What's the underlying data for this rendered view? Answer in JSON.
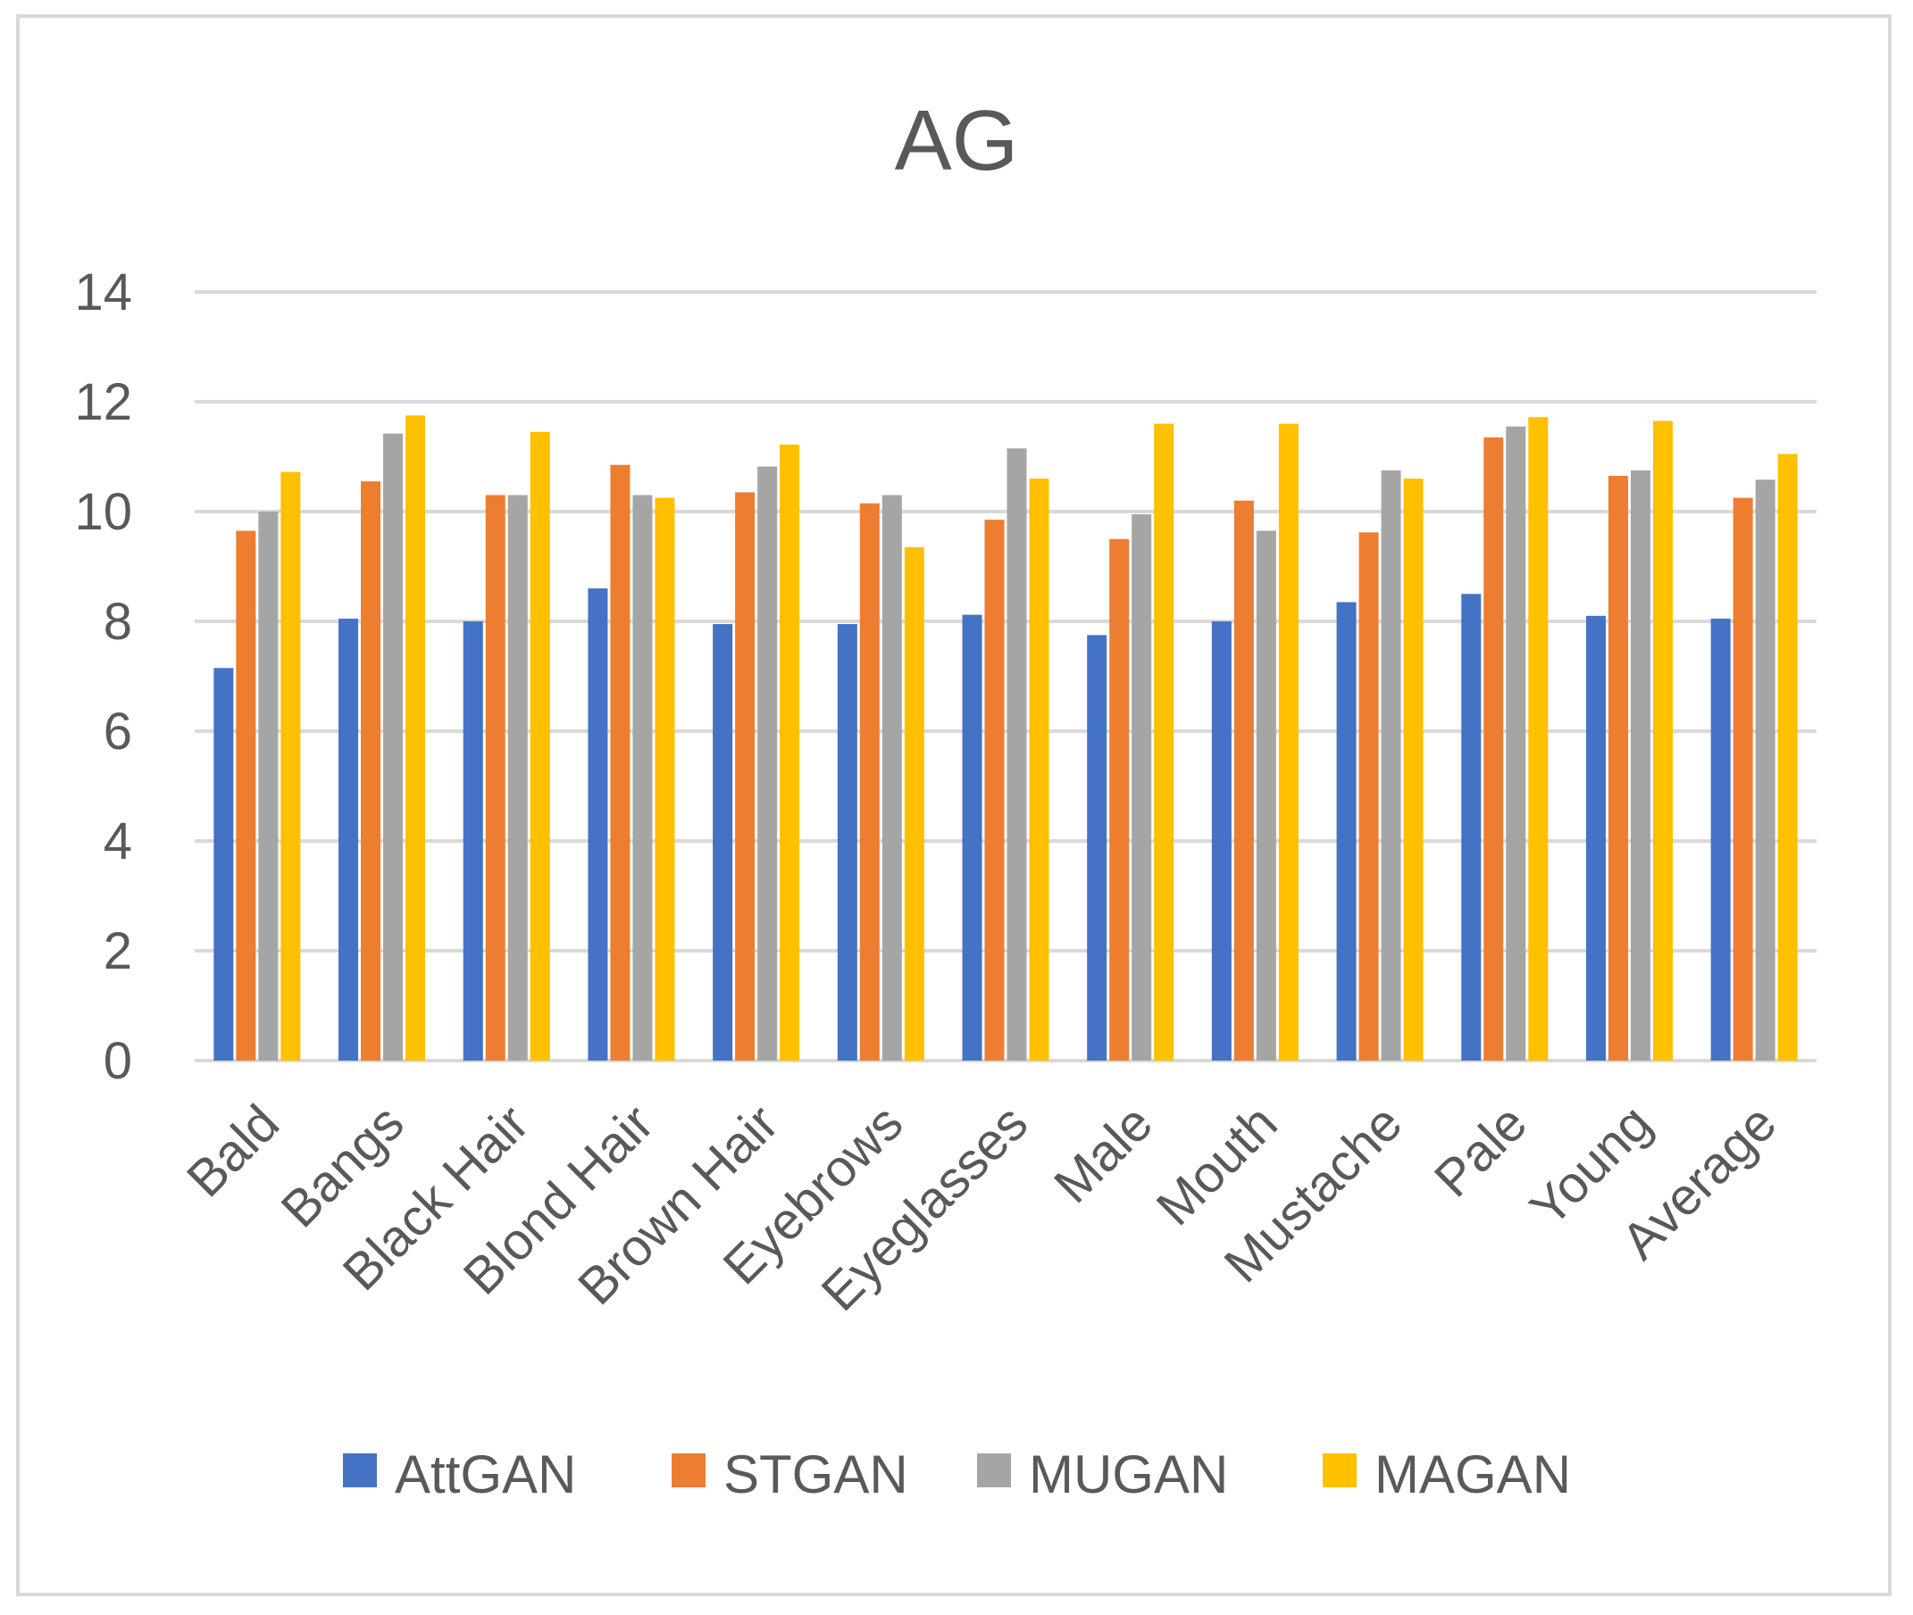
{
  "chart_data": {
    "type": "bar",
    "title": "AG",
    "xlabel": "",
    "ylabel": "",
    "ylim": [
      0,
      14
    ],
    "yticks": [
      "0",
      "2",
      "4",
      "6",
      "8",
      "10",
      "12",
      "14"
    ],
    "grid": true,
    "legend_position": "bottom",
    "categories": [
      "Bald",
      "Bangs",
      "Black Hair",
      "Blond Hair",
      "Brown Hair",
      "Eyebrows",
      "Eyeglasses",
      "Male",
      "Mouth",
      "Mustache",
      "Pale",
      "Young",
      "Average"
    ],
    "series": [
      {
        "name": "AttGAN",
        "color": "#4472c4",
        "values": [
          7.15,
          8.05,
          8.0,
          8.6,
          7.95,
          7.95,
          8.12,
          7.75,
          8.0,
          8.35,
          8.5,
          8.1,
          8.05
        ]
      },
      {
        "name": "STGAN",
        "color": "#ed7d31",
        "values": [
          9.65,
          10.55,
          10.3,
          10.85,
          10.35,
          10.15,
          9.85,
          9.5,
          10.2,
          9.62,
          11.35,
          10.65,
          10.25
        ]
      },
      {
        "name": "MUGAN",
        "color": "#a5a5a5",
        "values": [
          10.0,
          11.42,
          10.3,
          10.3,
          10.82,
          10.3,
          11.15,
          9.95,
          9.65,
          10.75,
          11.55,
          10.75,
          10.58
        ]
      },
      {
        "name": "MAGAN",
        "color": "#ffc000",
        "values": [
          10.72,
          11.75,
          11.45,
          10.25,
          11.22,
          9.35,
          10.6,
          11.6,
          11.6,
          10.6,
          11.72,
          11.65,
          11.05
        ]
      }
    ]
  }
}
